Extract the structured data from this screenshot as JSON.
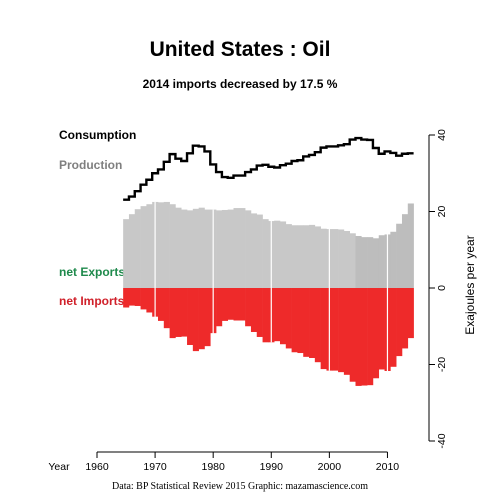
{
  "chart_data": {
    "type": "bar",
    "title": "United States :  Oil",
    "subtitle": "2014 imports decreased by 17.5 %",
    "xlabel": "Year",
    "ylabel": "Exajoules per year",
    "x_ticks": [
      1960,
      1970,
      1980,
      1990,
      2000,
      2010
    ],
    "y_ticks": [
      40,
      20,
      0,
      -20,
      -40
    ],
    "xlim": [
      1960,
      2015
    ],
    "ylim": [
      -40,
      40
    ],
    "legend": [
      "Consumption",
      "Production",
      "net Exports",
      "net Imports"
    ],
    "source": "Data: BP Statistical Review 2015    Graphic: mazamascience.com",
    "years": [
      1965,
      1966,
      1967,
      1968,
      1969,
      1970,
      1971,
      1972,
      1973,
      1974,
      1975,
      1976,
      1977,
      1978,
      1979,
      1980,
      1981,
      1982,
      1983,
      1984,
      1985,
      1986,
      1987,
      1988,
      1989,
      1990,
      1991,
      1992,
      1993,
      1994,
      1995,
      1996,
      1997,
      1998,
      1999,
      2000,
      2001,
      2002,
      2003,
      2004,
      2005,
      2006,
      2007,
      2008,
      2009,
      2010,
      2011,
      2012,
      2013,
      2014
    ],
    "consumption": [
      23.1,
      23.9,
      25.3,
      27.0,
      28.3,
      30.0,
      31.0,
      33.0,
      35.0,
      33.8,
      33.2,
      35.2,
      37.2,
      37.0,
      35.7,
      32.3,
      30.3,
      29.0,
      28.8,
      29.4,
      29.4,
      30.3,
      31.0,
      32.0,
      32.2,
      31.7,
      31.5,
      32.1,
      32.5,
      33.2,
      33.4,
      34.4,
      34.8,
      35.5,
      36.7,
      37.0,
      37.0,
      37.3,
      37.6,
      38.8,
      39.2,
      38.8,
      38.7,
      36.6,
      35.1,
      35.7,
      35.3,
      34.6,
      35.1,
      35.2
    ],
    "production": [
      18.0,
      19.3,
      20.6,
      21.4,
      21.9,
      22.5,
      22.4,
      22.5,
      21.9,
      21.0,
      20.5,
      20.3,
      20.7,
      21.0,
      20.5,
      20.5,
      20.3,
      20.4,
      20.5,
      20.9,
      20.9,
      20.3,
      19.5,
      19.2,
      18.0,
      17.5,
      17.6,
      17.4,
      16.7,
      16.4,
      16.4,
      16.4,
      16.5,
      16.1,
      15.5,
      15.4,
      15.4,
      15.3,
      14.9,
      14.3,
      13.6,
      13.3,
      13.3,
      13.0,
      13.8,
      14.0,
      14.7,
      16.8,
      19.3,
      22.1
    ],
    "net_imports": [
      -5.1,
      -4.6,
      -4.7,
      -5.6,
      -6.4,
      -7.5,
      -8.6,
      -10.5,
      -13.1,
      -12.8,
      -12.7,
      -14.9,
      -16.5,
      -16.0,
      -15.2,
      -11.8,
      -10.0,
      -8.6,
      -8.3,
      -8.5,
      -8.5,
      -10.0,
      -11.5,
      -12.8,
      -14.2,
      -14.2,
      -13.9,
      -14.7,
      -15.8,
      -16.8,
      -17.0,
      -18.0,
      -18.3,
      -19.4,
      -21.2,
      -21.6,
      -21.6,
      -22.0,
      -22.7,
      -24.5,
      -25.6,
      -25.5,
      -25.4,
      -23.6,
      -21.3,
      -21.7,
      -20.6,
      -17.8,
      -15.8,
      -13.1
    ],
    "colors": {
      "consumption": "#000000",
      "production": "#c8c8c8",
      "production_after_2005": "#bdbdbd",
      "imports": "#ee2a2a",
      "exports_label": "#1f8a4c",
      "imports_label": "#d0202a",
      "production_label": "#7f7f7f"
    }
  }
}
